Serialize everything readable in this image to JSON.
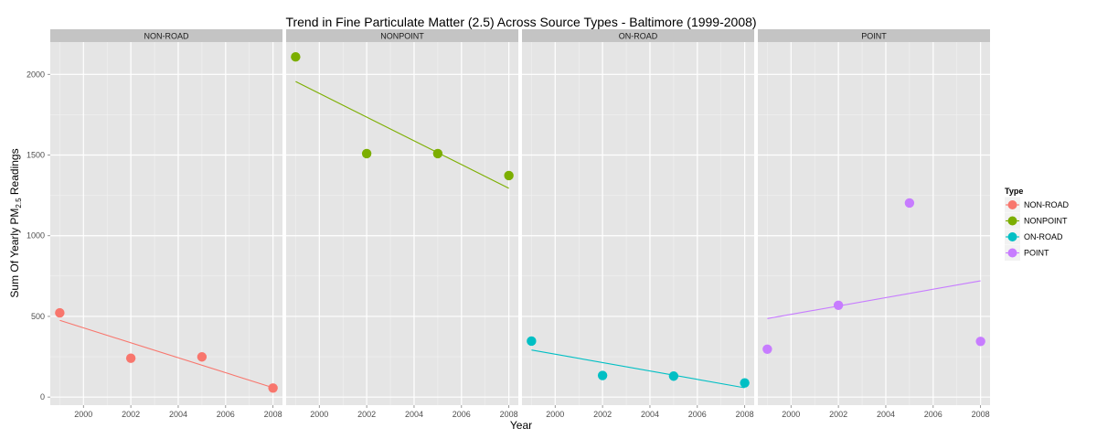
{
  "chart_data": {
    "type": "scatter",
    "title": "Trend in Fine Particulate Matter (2.5) Across Source Types - Baltimore (1999-2008)",
    "xlabel": "Year",
    "ylabel_prefix": "Sum Of Yearly PM",
    "ylabel_subscript": "2.5",
    "ylabel_suffix": " Readings",
    "x_ticks": [
      2000,
      2002,
      2004,
      2006,
      2008
    ],
    "y_ticks": [
      0,
      500,
      1000,
      1500,
      2000
    ],
    "x_tick_labels": [
      "2000",
      "2002",
      "2004",
      "2006",
      "2008"
    ],
    "y_tick_labels": [
      "0",
      "500",
      "1000",
      "1500",
      "2000"
    ],
    "xlim": [
      1998.6,
      2008.4
    ],
    "ylim": [
      -50,
      2200
    ],
    "grid": true,
    "trend_lines": "linear fit per panel",
    "legend": {
      "title": "Type",
      "placement": "right",
      "entries": [
        "NON-ROAD",
        "NONPOINT",
        "ON-ROAD",
        "POINT"
      ]
    },
    "panels": [
      {
        "name": "NON-ROAD",
        "color": "#F8766D",
        "x": [
          1999,
          2002,
          2005,
          2008
        ],
        "y": [
          522,
          241,
          249,
          56
        ]
      },
      {
        "name": "NONPOINT",
        "color": "#7CAE00",
        "x": [
          1999,
          2002,
          2005,
          2008
        ],
        "y": [
          2108,
          1509,
          1509,
          1373
        ]
      },
      {
        "name": "ON-ROAD",
        "color": "#00BFC4",
        "x": [
          1999,
          2002,
          2005,
          2008
        ],
        "y": [
          347,
          134,
          130,
          88
        ]
      },
      {
        "name": "POINT",
        "color": "#C77CFF",
        "x": [
          1999,
          2002,
          2005,
          2008
        ],
        "y": [
          297,
          569,
          1203,
          345
        ]
      }
    ]
  }
}
